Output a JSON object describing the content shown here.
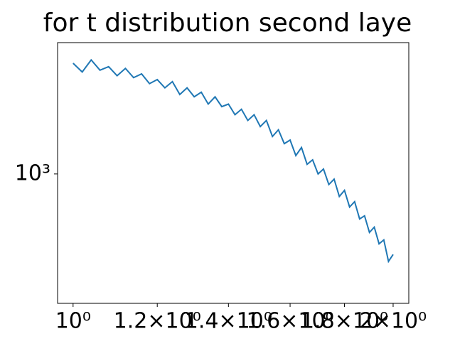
{
  "chart_data": {
    "type": "line",
    "title": "for t distribution second laye",
    "x": [
      1.0,
      1.02,
      1.04,
      1.06,
      1.08,
      1.1,
      1.12,
      1.14,
      1.16,
      1.18,
      1.2,
      1.22,
      1.24,
      1.26,
      1.28,
      1.3,
      1.32,
      1.34,
      1.36,
      1.38,
      1.4,
      1.42,
      1.44,
      1.46,
      1.48,
      1.5,
      1.52,
      1.54,
      1.56,
      1.58,
      1.6,
      1.62,
      1.64,
      1.66,
      1.68,
      1.7,
      1.72,
      1.74,
      1.76,
      1.78,
      1.8,
      1.82,
      1.84,
      1.86,
      1.88,
      1.9,
      1.92,
      1.94,
      1.96,
      1.98,
      2.0
    ],
    "series": [
      {
        "color": "#1f77b4",
        "values": [
          3000,
          2750,
          3100,
          2800,
          2900,
          2650,
          2850,
          2600,
          2700,
          2450,
          2550,
          2350,
          2500,
          2200,
          2350,
          2150,
          2250,
          2000,
          2150,
          1950,
          2000,
          1800,
          1900,
          1700,
          1800,
          1600,
          1700,
          1450,
          1550,
          1350,
          1400,
          1200,
          1300,
          1100,
          1150,
          1000,
          1050,
          900,
          950,
          800,
          850,
          720,
          760,
          640,
          660,
          560,
          590,
          500,
          520,
          420,
          450
        ]
      }
    ],
    "xscale": "log",
    "yscale": "log",
    "xlim": [
      0.967,
      2.069
    ],
    "ylim": [
      277,
      3680
    ],
    "xticks": [
      {
        "value": 1,
        "label": "10⁰"
      },
      {
        "value": 1.2,
        "label": "1.2×10⁰"
      },
      {
        "value": 1.4,
        "label": "1.4×10⁰"
      },
      {
        "value": 1.6,
        "label": "1.6×10⁰"
      },
      {
        "value": 1.8,
        "label": "1.8×10⁰"
      },
      {
        "value": 2,
        "label": "2×10⁰"
      }
    ],
    "yticks": [
      {
        "value": 1000,
        "label": "10³"
      }
    ]
  }
}
